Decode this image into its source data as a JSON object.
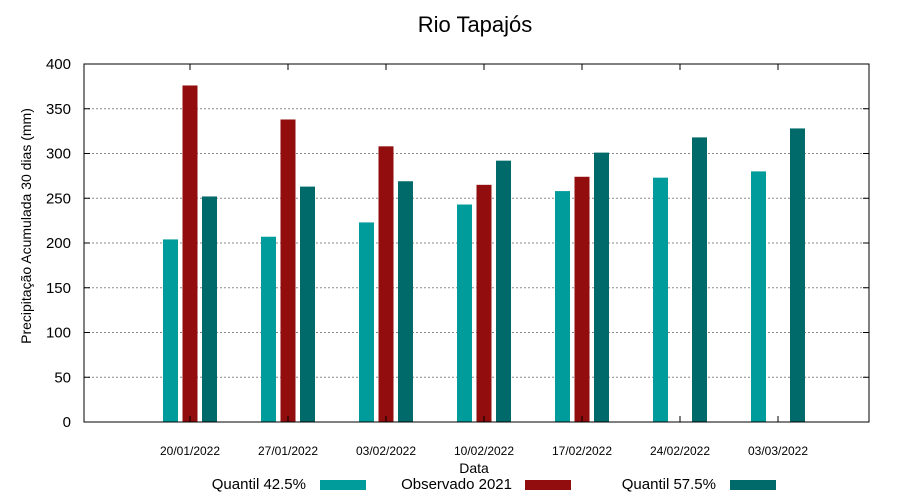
{
  "chart_data": {
    "type": "bar",
    "title": "Rio Tapajós",
    "xlabel": "Data",
    "ylabel": "Precipitação Acumulada 30 dias (mm)",
    "ylim": [
      0,
      400
    ],
    "yticks": [
      0,
      50,
      100,
      150,
      200,
      250,
      300,
      350,
      400
    ],
    "grid": true,
    "legend_position": "bottom",
    "categories": [
      "20/01/2022",
      "27/01/2022",
      "03/02/2022",
      "10/02/2022",
      "17/02/2022",
      "24/02/2022",
      "03/03/2022"
    ],
    "series": [
      {
        "name": "Quantil 42.5%",
        "color": "#009b9b",
        "values": [
          204,
          207,
          223,
          243,
          258,
          273,
          280
        ]
      },
      {
        "name": "Observado 2021",
        "color": "#920d0d",
        "values": [
          376,
          338,
          308,
          265,
          274,
          null,
          null
        ]
      },
      {
        "name": "Quantil 57.5%",
        "color": "#006969",
        "values": [
          252,
          263,
          269,
          292,
          301,
          318,
          328
        ]
      }
    ]
  }
}
